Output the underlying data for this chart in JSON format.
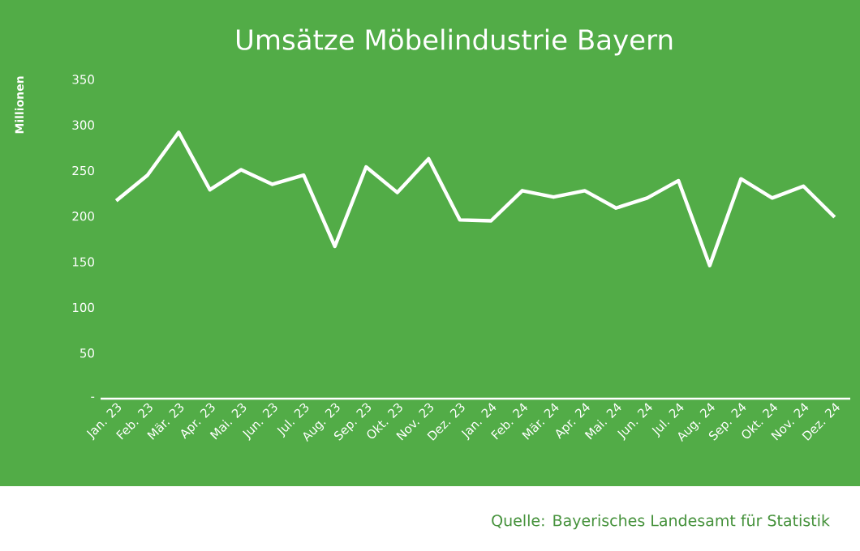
{
  "chart_data": {
    "type": "line",
    "title": "Umsätze Möbelindustrie Bayern",
    "ylabel": "Millionen",
    "categories": [
      "Jan. 23",
      "Feb. 23",
      "Mär. 23",
      "Apr. 23",
      "Mai. 23",
      "Jun. 23",
      "Jul. 23",
      "Aug. 23",
      "Sep. 23",
      "Okt. 23",
      "Nov. 23",
      "Dez. 23",
      "Jan. 24",
      "Feb. 24",
      "Mär. 24",
      "Apr. 24",
      "Mai. 24",
      "Jun. 24",
      "Jul. 24",
      "Aug. 24",
      "Sep. 24",
      "Okt. 24",
      "Nov. 24",
      "Dez. 24"
    ],
    "series": [
      {
        "color": "#ffffff",
        "values": [
          217,
          245,
          292,
          229,
          251,
          235,
          245,
          167,
          254,
          226,
          263,
          196,
          195,
          228,
          221,
          228,
          209,
          220,
          239,
          146,
          241,
          220,
          233,
          199
        ]
      }
    ],
    "ylim": [
      0,
      350
    ],
    "yticks": [
      {
        "value": 0,
        "label": "-"
      },
      50,
      100,
      150,
      200,
      250,
      300,
      350
    ],
    "grid": false,
    "legend": false,
    "marker": "none",
    "line_style": "solid",
    "annotations": [
      "Quelle: Bayerisches Landesamt für Statistik"
    ]
  }
}
